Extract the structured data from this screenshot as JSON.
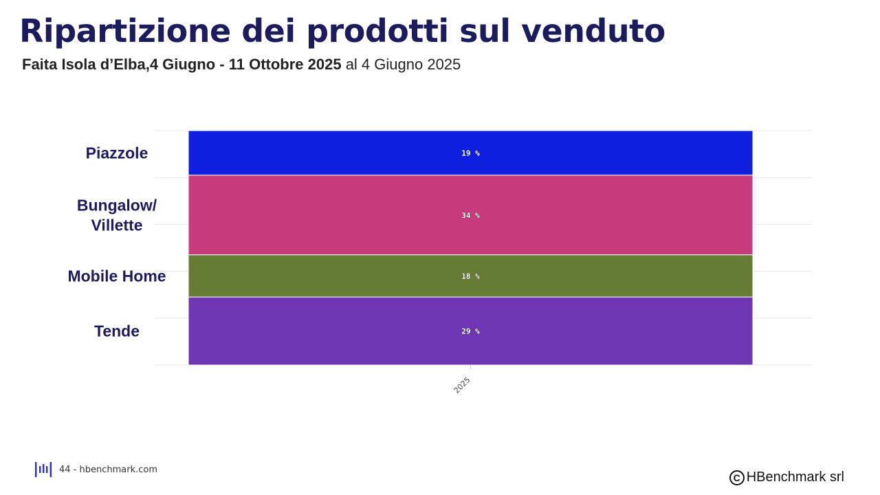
{
  "header": {
    "title": "Ripartizione dei prodotti sul venduto",
    "subtitle_bold": "Faita Isola d’Elba,4 Giugno - 11 Ottobre 2025",
    "subtitle_rest": " al 4 Giugno 2025"
  },
  "footer": {
    "page_info": "44 - hbenchmark.com",
    "copyright_icon": "C",
    "copyright_text": "HBenchmark srl",
    "logo_icon": "hbenchmark-logo-icon",
    "logo_color": "#2b2bd6"
  },
  "chart_data": {
    "type": "bar",
    "stacked": true,
    "orientation": "vertical",
    "categories": [
      "2025"
    ],
    "series": [
      {
        "name": "Piazzole",
        "values": [
          19
        ],
        "label": "19 %",
        "color": "#0f1fdf"
      },
      {
        "name": "Bungalow/\nVillette",
        "values": [
          34
        ],
        "label": "34 %",
        "color": "#c73a7c"
      },
      {
        "name": "Mobile Home",
        "values": [
          18
        ],
        "label": "18 %",
        "color": "#657d32"
      },
      {
        "name": "Tende",
        "values": [
          29
        ],
        "label": "29 %",
        "color": "#6e36b3"
      }
    ],
    "ylim": [
      0,
      100
    ],
    "grid": true,
    "legend_position": "left",
    "xlabel": "",
    "ylabel": ""
  }
}
